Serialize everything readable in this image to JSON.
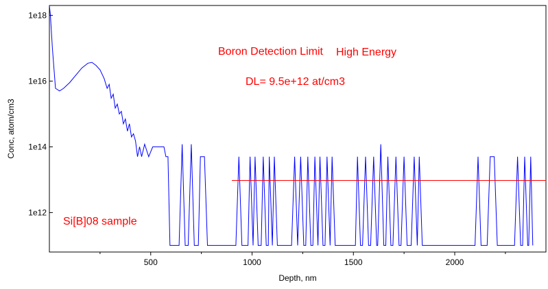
{
  "chart_data": {
    "type": "line",
    "xlabel": "Depth, nm",
    "ylabel": "Conc, atom/cm3",
    "xlim": [
      0,
      2450
    ],
    "ylim_log10": [
      10.8,
      18.3
    ],
    "y_scale": "log",
    "grid": false,
    "x_ticks": [
      {
        "value": 500,
        "label": "500"
      },
      {
        "value": 1000,
        "label": "1000"
      },
      {
        "value": 1500,
        "label": "1500"
      },
      {
        "value": 2000,
        "label": "2000"
      }
    ],
    "x_minor_ticks": [
      250,
      750,
      1250,
      1750,
      2250
    ],
    "y_ticks": [
      {
        "value": 1000000000000.0,
        "label": "1e12"
      },
      {
        "value": 100000000000000.0,
        "label": "1e14"
      },
      {
        "value": 1e+16,
        "label": "1e16"
      },
      {
        "value": 1e+18,
        "label": "1e18"
      }
    ],
    "annotations": [
      {
        "text": "Boron Detection Limit",
        "color": "#ff0000"
      },
      {
        "text": "High Energy",
        "color": "#ff0000"
      },
      {
        "text": "DL= 9.5e+12 at/cm3",
        "color": "#ff0000"
      },
      {
        "text": "Si[B]08 sample",
        "color": "#ff0000"
      }
    ],
    "series": [
      {
        "color": "#0000ff",
        "points": [
          [
            0,
            2e+18
          ],
          [
            5,
            1e+18
          ],
          [
            15,
            1e+17
          ],
          [
            30,
            6000000000000000.0
          ],
          [
            50,
            5000000000000000.0
          ],
          [
            70,
            6000000000000000.0
          ],
          [
            100,
            9000000000000000.0
          ],
          [
            130,
            1.5e+16
          ],
          [
            160,
            2.5e+16
          ],
          [
            190,
            3.5e+16
          ],
          [
            210,
            3.7e+16
          ],
          [
            230,
            3e+16
          ],
          [
            250,
            2.2e+16
          ],
          [
            270,
            1.2e+16
          ],
          [
            285,
            6000000000000000.0
          ],
          [
            295,
            8000000000000000.0
          ],
          [
            305,
            3000000000000000.0
          ],
          [
            315,
            4000000000000000.0
          ],
          [
            325,
            1500000000000000.0
          ],
          [
            335,
            2000000000000000.0
          ],
          [
            345,
            1000000000000000.0
          ],
          [
            355,
            1200000000000000.0
          ],
          [
            365,
            500000000000000.0
          ],
          [
            375,
            700000000000000.0
          ],
          [
            385,
            300000000000000.0
          ],
          [
            395,
            500000000000000.0
          ],
          [
            405,
            200000000000000.0
          ],
          [
            415,
            250000000000000.0
          ],
          [
            425,
            150000000000000.0
          ],
          [
            435,
            50000000000000.0
          ],
          [
            445,
            100000000000000.0
          ],
          [
            455,
            50000000000000.0
          ],
          [
            470,
            120000000000000.0
          ],
          [
            490,
            50000000000000.0
          ],
          [
            510,
            100000000000000.0
          ],
          [
            530,
            100000000000000.0
          ],
          [
            550,
            100000000000000.0
          ],
          [
            565,
            100000000000000.0
          ],
          [
            575,
            50000000000000.0
          ],
          [
            585,
            50000000000000.0
          ],
          [
            595,
            100000000000.0
          ],
          [
            630,
            100000000000.0
          ],
          [
            640,
            100000000000.0
          ],
          [
            655,
            120000000000000.0
          ],
          [
            670,
            100000000000.0
          ],
          [
            685,
            100000000000.0
          ],
          [
            700,
            120000000000000.0
          ],
          [
            715,
            100000000000.0
          ],
          [
            735,
            100000000000.0
          ],
          [
            745,
            50000000000000.0
          ],
          [
            765,
            50000000000000.0
          ],
          [
            780,
            100000000000.0
          ],
          [
            900,
            100000000000.0
          ],
          [
            920,
            100000000000.0
          ],
          [
            935,
            50000000000000.0
          ],
          [
            950,
            100000000000.0
          ],
          [
            980,
            100000000000.0
          ],
          [
            990,
            50000000000000.0
          ],
          [
            1005,
            100000000000.0
          ],
          [
            1015,
            50000000000000.0
          ],
          [
            1030,
            100000000000.0
          ],
          [
            1045,
            100000000000.0
          ],
          [
            1055,
            50000000000000.0
          ],
          [
            1070,
            100000000000.0
          ],
          [
            1080,
            100000000000.0
          ],
          [
            1085,
            50000000000000.0
          ],
          [
            1100,
            100000000000.0
          ],
          [
            1110,
            50000000000000.0
          ],
          [
            1125,
            100000000000.0
          ],
          [
            1195,
            100000000000.0
          ],
          [
            1210,
            50000000000000.0
          ],
          [
            1225,
            100000000000.0
          ],
          [
            1240,
            50000000000000.0
          ],
          [
            1255,
            100000000000.0
          ],
          [
            1265,
            100000000000.0
          ],
          [
            1275,
            50000000000000.0
          ],
          [
            1290,
            100000000000.0
          ],
          [
            1300,
            100000000000.0
          ],
          [
            1310,
            50000000000000.0
          ],
          [
            1325,
            100000000000.0
          ],
          [
            1335,
            50000000000000.0
          ],
          [
            1350,
            100000000000.0
          ],
          [
            1360,
            100000000000.0
          ],
          [
            1370,
            50000000000000.0
          ],
          [
            1385,
            100000000000.0
          ],
          [
            1395,
            50000000000000.0
          ],
          [
            1410,
            100000000000.0
          ],
          [
            1420,
            100000000000.0
          ],
          [
            1510,
            100000000000.0
          ],
          [
            1520,
            50000000000000.0
          ],
          [
            1535,
            100000000000.0
          ],
          [
            1545,
            100000000000.0
          ],
          [
            1560,
            50000000000000.0
          ],
          [
            1575,
            100000000000.0
          ],
          [
            1585,
            100000000000.0
          ],
          [
            1600,
            50000000000000.0
          ],
          [
            1615,
            100000000000.0
          ],
          [
            1620,
            100000000000.0
          ],
          [
            1635,
            120000000000000.0
          ],
          [
            1650,
            100000000000.0
          ],
          [
            1660,
            100000000000.0
          ],
          [
            1670,
            50000000000000.0
          ],
          [
            1685,
            100000000000.0
          ],
          [
            1695,
            100000000000.0
          ],
          [
            1710,
            50000000000000.0
          ],
          [
            1725,
            100000000000.0
          ],
          [
            1735,
            100000000000.0
          ],
          [
            1750,
            50000000000000.0
          ],
          [
            1765,
            100000000000.0
          ],
          [
            1785,
            100000000000.0
          ],
          [
            1800,
            50000000000000.0
          ],
          [
            1815,
            100000000000.0
          ],
          [
            1825,
            50000000000000.0
          ],
          [
            1840,
            100000000000.0
          ],
          [
            1850,
            100000000000.0
          ],
          [
            2100,
            100000000000.0
          ],
          [
            2115,
            50000000000000.0
          ],
          [
            2130,
            100000000000.0
          ],
          [
            2160,
            100000000000.0
          ],
          [
            2175,
            50000000000000.0
          ],
          [
            2195,
            50000000000000.0
          ],
          [
            2210,
            100000000000.0
          ],
          [
            2295,
            100000000000.0
          ],
          [
            2310,
            50000000000000.0
          ],
          [
            2325,
            100000000000.0
          ],
          [
            2335,
            100000000000.0
          ],
          [
            2345,
            50000000000000.0
          ],
          [
            2360,
            100000000000.0
          ],
          [
            2365,
            100000000000.0
          ],
          [
            2375,
            50000000000000.0
          ],
          [
            2385,
            100000000000.0
          ]
        ]
      },
      {
        "color": "#ff0000",
        "points": [
          [
            900,
            9500000000000.0
          ],
          [
            2450,
            9500000000000.0
          ]
        ]
      }
    ]
  }
}
